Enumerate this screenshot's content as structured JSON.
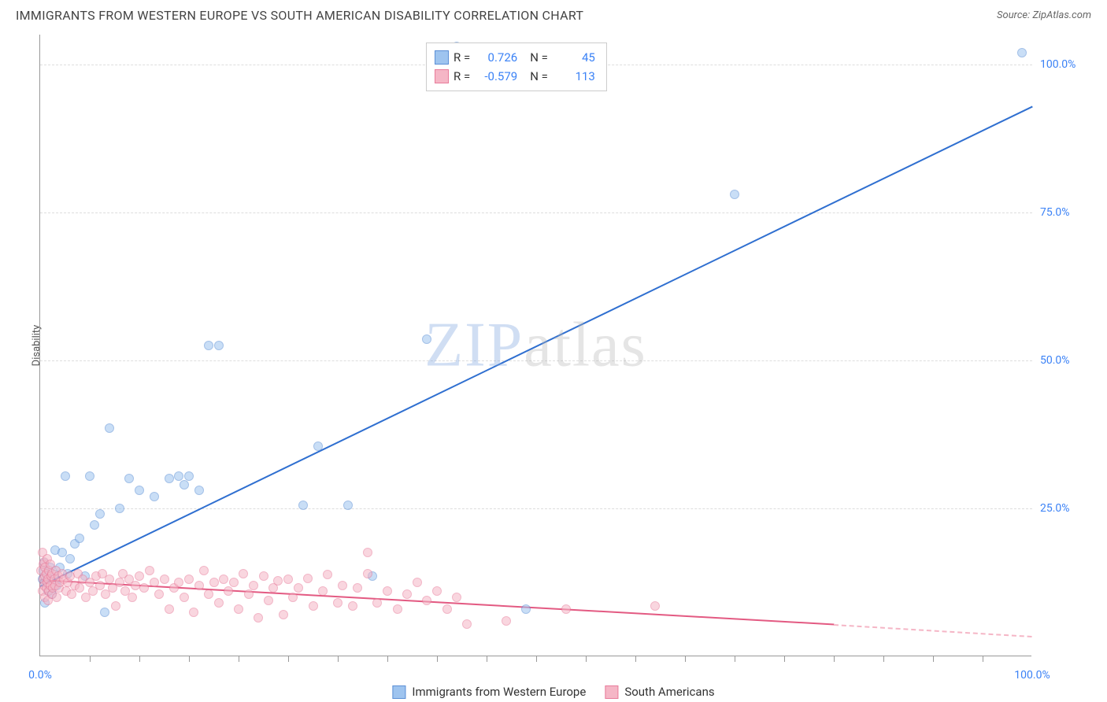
{
  "header": {
    "title": "IMMIGRANTS FROM WESTERN EUROPE VS SOUTH AMERICAN DISABILITY CORRELATION CHART",
    "source_label": "Source:",
    "source_value": "ZipAtlas.com"
  },
  "watermark": {
    "part1": "ZIP",
    "part2": "atlas"
  },
  "chart": {
    "type": "scatter",
    "y_axis_title": "Disability",
    "xlim": [
      0,
      100
    ],
    "ylim": [
      0,
      105
    ],
    "background_color": "#ffffff",
    "grid_color": "#dddddd",
    "axis_color": "#999999",
    "xticks": [
      {
        "pos": 0.0,
        "label": "0.0%"
      },
      {
        "pos": 100.0,
        "label": "100.0%"
      }
    ],
    "xtick_minor_positions": [
      5,
      10,
      15,
      20,
      25,
      30,
      35,
      40,
      45,
      50,
      55,
      60,
      65,
      70,
      75,
      80,
      85,
      90,
      95
    ],
    "yticks": [
      {
        "pos": 25.0,
        "label": "25.0%"
      },
      {
        "pos": 50.0,
        "label": "50.0%"
      },
      {
        "pos": 75.0,
        "label": "75.0%"
      },
      {
        "pos": 100.0,
        "label": "100.0%"
      }
    ],
    "point_radius": 6,
    "point_opacity": 0.55,
    "series": [
      {
        "name": "Immigrants from Western Europe",
        "fill_color": "#9ec4ef",
        "stroke_color": "#5b8fd6",
        "line_color": "#2f6fd0",
        "legend_r_label": "R =",
        "legend_r_value": "0.726",
        "legend_n_label": "N =",
        "legend_n_value": "45",
        "trend": {
          "x1": 0,
          "y1": 12,
          "x2": 100,
          "y2": 93,
          "dash_from": 100
        },
        "points": [
          [
            0.2,
            13.0
          ],
          [
            0.3,
            14.5
          ],
          [
            0.4,
            15.8
          ],
          [
            0.5,
            9.0
          ],
          [
            0.5,
            12.5
          ],
          [
            0.7,
            13.5
          ],
          [
            0.8,
            11.0
          ],
          [
            1.0,
            15.0
          ],
          [
            1.2,
            10.5
          ],
          [
            1.4,
            13.8
          ],
          [
            1.5,
            18.0
          ],
          [
            1.7,
            12.0
          ],
          [
            2.0,
            15.0
          ],
          [
            2.2,
            17.5
          ],
          [
            2.5,
            30.5
          ],
          [
            2.8,
            14.0
          ],
          [
            3.0,
            16.5
          ],
          [
            3.5,
            19.0
          ],
          [
            4.0,
            20.0
          ],
          [
            4.5,
            13.5
          ],
          [
            5.0,
            30.5
          ],
          [
            5.5,
            22.2
          ],
          [
            6.0,
            24.0
          ],
          [
            6.5,
            7.5
          ],
          [
            7.0,
            38.5
          ],
          [
            8.0,
            25.0
          ],
          [
            9.0,
            30.0
          ],
          [
            10.0,
            28.0
          ],
          [
            11.5,
            27.0
          ],
          [
            13.0,
            30.0
          ],
          [
            14.0,
            30.5
          ],
          [
            14.5,
            29.0
          ],
          [
            15.0,
            30.5
          ],
          [
            16.0,
            28.0
          ],
          [
            17.0,
            52.5
          ],
          [
            18.0,
            52.5
          ],
          [
            26.5,
            25.5
          ],
          [
            28.0,
            35.5
          ],
          [
            31.0,
            25.5
          ],
          [
            33.5,
            13.5
          ],
          [
            39.0,
            53.5
          ],
          [
            42.0,
            103.0
          ],
          [
            49.0,
            8.0
          ],
          [
            70.0,
            78.0
          ],
          [
            99.0,
            102.0
          ]
        ]
      },
      {
        "name": "South Americans",
        "fill_color": "#f5b6c6",
        "stroke_color": "#e87b9a",
        "line_color": "#e35a82",
        "legend_r_label": "R =",
        "legend_r_value": "-0.579",
        "legend_n_label": "N =",
        "legend_n_value": "113",
        "trend": {
          "x1": 0,
          "y1": 13,
          "x2": 80,
          "y2": 5.5,
          "dash_from": 80,
          "dash_x2": 100,
          "dash_y2": 3.5
        },
        "points": [
          [
            0.1,
            14.5
          ],
          [
            0.2,
            11.0
          ],
          [
            0.2,
            17.5
          ],
          [
            0.3,
            13.0
          ],
          [
            0.3,
            15.5
          ],
          [
            0.4,
            12.0
          ],
          [
            0.4,
            16.0
          ],
          [
            0.5,
            10.0
          ],
          [
            0.5,
            13.5
          ],
          [
            0.5,
            15.0
          ],
          [
            0.6,
            11.5
          ],
          [
            0.6,
            14.0
          ],
          [
            0.7,
            12.5
          ],
          [
            0.7,
            16.5
          ],
          [
            0.8,
            13.0
          ],
          [
            0.8,
            9.5
          ],
          [
            0.9,
            14.5
          ],
          [
            0.9,
            11.0
          ],
          [
            1.0,
            12.0
          ],
          [
            1.0,
            15.5
          ],
          [
            1.1,
            13.5
          ],
          [
            1.2,
            10.5
          ],
          [
            1.2,
            14.0
          ],
          [
            1.3,
            11.5
          ],
          [
            1.4,
            13.0
          ],
          [
            1.5,
            12.0
          ],
          [
            1.6,
            14.5
          ],
          [
            1.7,
            10.0
          ],
          [
            1.8,
            13.5
          ],
          [
            1.9,
            11.5
          ],
          [
            2.0,
            12.5
          ],
          [
            2.2,
            14.0
          ],
          [
            2.4,
            13.0
          ],
          [
            2.6,
            11.0
          ],
          [
            2.8,
            12.5
          ],
          [
            3.0,
            13.5
          ],
          [
            3.2,
            10.5
          ],
          [
            3.5,
            12.0
          ],
          [
            3.8,
            14.0
          ],
          [
            4.0,
            11.5
          ],
          [
            4.3,
            13.0
          ],
          [
            4.6,
            10.0
          ],
          [
            5.0,
            12.5
          ],
          [
            5.3,
            11.0
          ],
          [
            5.6,
            13.5
          ],
          [
            6.0,
            12.0
          ],
          [
            6.3,
            14.0
          ],
          [
            6.6,
            10.5
          ],
          [
            7.0,
            13.0
          ],
          [
            7.3,
            11.5
          ],
          [
            7.6,
            8.5
          ],
          [
            8.0,
            12.5
          ],
          [
            8.3,
            14.0
          ],
          [
            8.6,
            11.0
          ],
          [
            9.0,
            13.0
          ],
          [
            9.3,
            10.0
          ],
          [
            9.6,
            12.0
          ],
          [
            10.0,
            13.5
          ],
          [
            10.5,
            11.5
          ],
          [
            11.0,
            14.5
          ],
          [
            11.5,
            12.5
          ],
          [
            12.0,
            10.5
          ],
          [
            12.5,
            13.0
          ],
          [
            13.0,
            8.0
          ],
          [
            13.5,
            11.5
          ],
          [
            14.0,
            12.5
          ],
          [
            14.5,
            10.0
          ],
          [
            15.0,
            13.0
          ],
          [
            15.5,
            7.5
          ],
          [
            16.0,
            12.0
          ],
          [
            16.5,
            14.5
          ],
          [
            17.0,
            10.5
          ],
          [
            17.5,
            12.5
          ],
          [
            18.0,
            9.0
          ],
          [
            18.5,
            13.0
          ],
          [
            19.0,
            11.0
          ],
          [
            19.5,
            12.5
          ],
          [
            20.0,
            8.0
          ],
          [
            20.5,
            14.0
          ],
          [
            21.0,
            10.5
          ],
          [
            21.5,
            12.0
          ],
          [
            22.0,
            6.5
          ],
          [
            22.5,
            13.5
          ],
          [
            23.0,
            9.5
          ],
          [
            23.5,
            11.5
          ],
          [
            24.0,
            12.8
          ],
          [
            24.5,
            7.0
          ],
          [
            25.0,
            13.0
          ],
          [
            25.5,
            10.0
          ],
          [
            26.0,
            11.5
          ],
          [
            27.0,
            13.2
          ],
          [
            27.5,
            8.5
          ],
          [
            28.5,
            11.0
          ],
          [
            29.0,
            13.8
          ],
          [
            30.0,
            9.0
          ],
          [
            30.5,
            12.0
          ],
          [
            31.5,
            8.5
          ],
          [
            32.0,
            11.5
          ],
          [
            33.0,
            14.0
          ],
          [
            33.0,
            17.5
          ],
          [
            34.0,
            9.0
          ],
          [
            35.0,
            11.0
          ],
          [
            36.0,
            8.0
          ],
          [
            37.0,
            10.5
          ],
          [
            38.0,
            12.5
          ],
          [
            39.0,
            9.5
          ],
          [
            40.0,
            11.0
          ],
          [
            41.0,
            8.0
          ],
          [
            42.0,
            10.0
          ],
          [
            43.0,
            5.5
          ],
          [
            47.0,
            6.0
          ],
          [
            53.0,
            8.0
          ],
          [
            62.0,
            8.5
          ]
        ]
      }
    ],
    "bottom_legend": [
      {
        "label": "Immigrants from Western Europe",
        "fill": "#9ec4ef",
        "stroke": "#5b8fd6"
      },
      {
        "label": "South Americans",
        "fill": "#f5b6c6",
        "stroke": "#e87b9a"
      }
    ]
  }
}
